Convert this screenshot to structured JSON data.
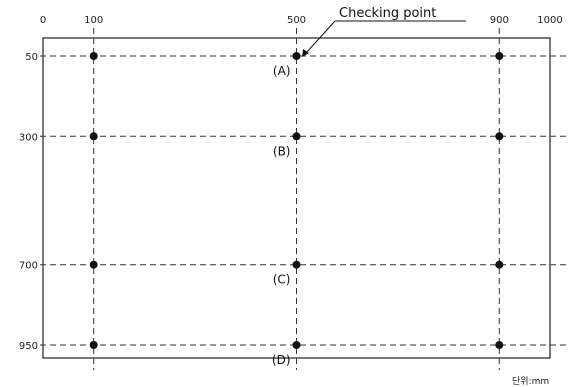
{
  "x_ticks": [
    "0",
    "100",
    "500",
    "900",
    "1000"
  ],
  "y_ticks": [
    "50",
    "300",
    "700",
    "950"
  ],
  "grid_x": [
    100,
    500,
    900
  ],
  "grid_y": [
    50,
    300,
    700,
    950
  ],
  "row_labels": [
    "(A)",
    "(B)",
    "(C)",
    "(D)"
  ],
  "callout": "Checking point",
  "unit_label": "단위:mm"
}
